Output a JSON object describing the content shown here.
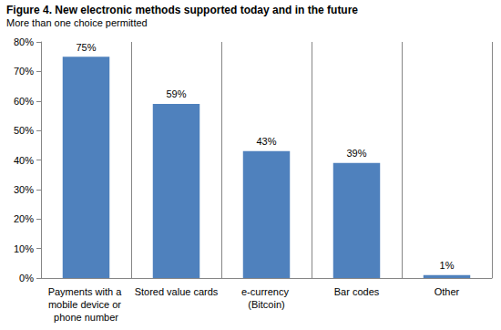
{
  "chart_data": {
    "type": "bar",
    "title": "Figure 4. New electronic methods supported today and in the future",
    "subtitle": "More than one choice permitted",
    "categories": [
      "Payments with a mobile device or phone number",
      "Stored value cards",
      "e-currency (Bitcoin)",
      "Bar codes",
      "Other"
    ],
    "values": [
      75,
      59,
      43,
      39,
      1
    ],
    "value_labels": [
      "75%",
      "59%",
      "43%",
      "39%",
      "1%"
    ],
    "data_labels": true,
    "color": "#4f81bd",
    "ylim": [
      0,
      80
    ],
    "yticks": [
      {
        "value": 0,
        "label": "0%"
      },
      {
        "value": 10,
        "label": "10%"
      },
      {
        "value": 20,
        "label": "20%"
      },
      {
        "value": 30,
        "label": "30%"
      },
      {
        "value": 40,
        "label": "40%"
      },
      {
        "value": 50,
        "label": "50%"
      },
      {
        "value": 60,
        "label": "60%"
      },
      {
        "value": 70,
        "label": "70%"
      },
      {
        "value": 80,
        "label": "80%"
      }
    ],
    "grid": false
  }
}
